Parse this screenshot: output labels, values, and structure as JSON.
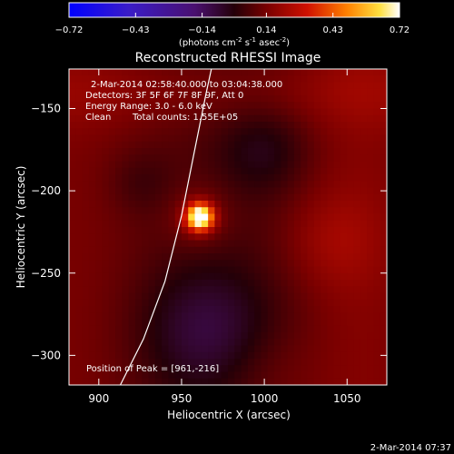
{
  "chart_data": {
    "type": "heatmap",
    "title": "Reconstructed RHESSI Image",
    "colorbar": {
      "ticks": [
        "-0.72",
        "-0.43",
        "-0.14",
        "0.14",
        "0.43",
        "0.72"
      ],
      "range": [
        -0.72,
        0.72
      ],
      "unit_prefix": "(photons cm",
      "unit_exp1": "-2",
      "unit_mid": " s",
      "unit_exp2": "-1",
      "unit_mid2": " asec",
      "unit_exp3": "-2",
      "unit_suffix": ")"
    },
    "xlabel": "Heliocentric X (arcsec)",
    "ylabel": "Heliocentric Y (arcsec)",
    "xlim": [
      882,
      1074
    ],
    "ylim": [
      -318,
      -126
    ],
    "xticks": [
      900,
      950,
      1000,
      1050
    ],
    "yticks": [
      -150,
      -200,
      -250,
      -300
    ],
    "xtick_labels": [
      "900",
      "950",
      "1000",
      "1050"
    ],
    "ytick_labels": [
      "-150",
      "-200",
      "-250",
      "-300"
    ],
    "annotations": {
      "time_range": "2-Mar-2014 02:58:40.000 to 03:04:38.000",
      "detectors": "Detectors: 3F 5F 6F 7F 8F 9F, Att 0",
      "energy": "Energy Range: 3.0 - 6.0 keV",
      "clean_label": "Clean",
      "counts": "Total counts: 1.55E+05",
      "peak": "Position of Peak = [961,-216]"
    },
    "peak_position": [
      961,
      -216
    ],
    "limb_curve": [
      [
        913,
        -318
      ],
      [
        927,
        -290
      ],
      [
        940,
        -255
      ],
      [
        950,
        -215
      ],
      [
        958,
        -175
      ],
      [
        965,
        -140
      ],
      [
        968,
        -126
      ]
    ],
    "colors": {
      "limb": "#ffffff",
      "axes": "#ffffff"
    }
  },
  "footer": {
    "timestamp": "2-Mar-2014 07:37"
  }
}
